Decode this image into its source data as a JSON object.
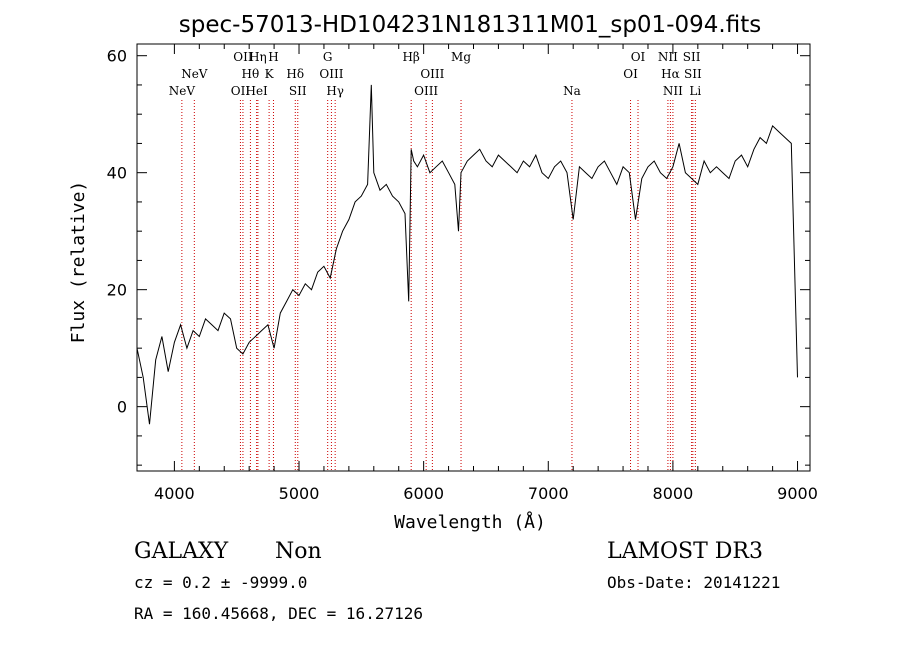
{
  "chart_data": {
    "type": "line",
    "title": "spec-57013-HD104231N181311M01_sp01-094.fits",
    "xlabel": "Wavelength (Å)",
    "ylabel": "Flux (relative)",
    "xlim": [
      3700,
      9100
    ],
    "ylim": [
      -11,
      62
    ],
    "xticks": [
      4000,
      5000,
      6000,
      7000,
      8000,
      9000
    ],
    "yticks": [
      0,
      20,
      40,
      60
    ],
    "grid": false,
    "line_color": "#000000",
    "marker_color": "#cc0000",
    "series": [
      {
        "x": [
          3700,
          3750,
          3800,
          3850,
          3900,
          3950,
          4000,
          4050,
          4100,
          4150,
          4200,
          4250,
          4300,
          4350,
          4400,
          4450,
          4500,
          4550,
          4600,
          4650,
          4700,
          4750,
          4800,
          4850,
          4900,
          4950,
          5000,
          5050,
          5100,
          5150,
          5200,
          5250,
          5300,
          5350,
          5400,
          5450,
          5500,
          5550,
          5580,
          5600,
          5650,
          5700,
          5750,
          5800,
          5850,
          5880,
          5900,
          5920,
          5950,
          6000,
          6050,
          6100,
          6150,
          6200,
          6250,
          6280,
          6300,
          6350,
          6400,
          6450,
          6500,
          6550,
          6600,
          6650,
          6700,
          6750,
          6800,
          6850,
          6900,
          6950,
          7000,
          7050,
          7100,
          7150,
          7200,
          7250,
          7300,
          7350,
          7400,
          7450,
          7500,
          7550,
          7600,
          7650,
          7700,
          7750,
          7800,
          7850,
          7900,
          7950,
          8000,
          8050,
          8100,
          8150,
          8200,
          8250,
          8300,
          8350,
          8400,
          8450,
          8500,
          8550,
          8600,
          8650,
          8700,
          8750,
          8800,
          8850,
          8900,
          8950,
          9000
        ],
        "y": [
          10,
          5,
          -3,
          8,
          12,
          6,
          11,
          14,
          10,
          13,
          12,
          15,
          14,
          13,
          16,
          15,
          10,
          9,
          11,
          12,
          13,
          14,
          10,
          16,
          18,
          20,
          19,
          21,
          20,
          23,
          24,
          22,
          27,
          30,
          32,
          35,
          36,
          38,
          55,
          40,
          37,
          38,
          36,
          35,
          33,
          18,
          44,
          42,
          41,
          43,
          40,
          41,
          42,
          40,
          38,
          30,
          40,
          42,
          43,
          44,
          42,
          41,
          43,
          42,
          41,
          40,
          42,
          41,
          43,
          40,
          39,
          41,
          42,
          40,
          32,
          41,
          40,
          39,
          41,
          42,
          40,
          38,
          41,
          40,
          32,
          39,
          41,
          42,
          40,
          39,
          41,
          45,
          40,
          39,
          38,
          42,
          40,
          41,
          40,
          39,
          42,
          43,
          41,
          44,
          46,
          45,
          48,
          47,
          46,
          45,
          5
        ]
      }
    ],
    "line_markers": [
      {
        "x": 4060,
        "label": "NeV",
        "row": 2
      },
      {
        "x": 4160,
        "label": "NeV",
        "row": 1
      },
      {
        "x": 4530,
        "label": "OII",
        "row": 2
      },
      {
        "x": 4550,
        "label": "OII",
        "row": 0
      },
      {
        "x": 4610,
        "label": "Hθ",
        "row": 1
      },
      {
        "x": 4660,
        "label": "HeI",
        "row": 2
      },
      {
        "x": 4670,
        "label": "Hη",
        "row": 0
      },
      {
        "x": 4760,
        "label": "K",
        "row": 1
      },
      {
        "x": 4795,
        "label": "H",
        "row": 0
      },
      {
        "x": 4970,
        "label": "Hδ",
        "row": 1
      },
      {
        "x": 4990,
        "label": "SII",
        "row": 2
      },
      {
        "x": 5230,
        "label": "G",
        "row": 0
      },
      {
        "x": 5260,
        "label": "OIII",
        "row": 1
      },
      {
        "x": 5290,
        "label": "Hγ",
        "row": 2
      },
      {
        "x": 5900,
        "label": "Hβ",
        "row": 0
      },
      {
        "x": 6020,
        "label": "OIII",
        "row": 2
      },
      {
        "x": 6070,
        "label": "OIII",
        "row": 1
      },
      {
        "x": 6300,
        "label": "Mg",
        "row": 0
      },
      {
        "x": 7190,
        "label": "Na",
        "row": 2
      },
      {
        "x": 7660,
        "label": "OI",
        "row": 1
      },
      {
        "x": 7720,
        "label": "OI",
        "row": 0
      },
      {
        "x": 7960,
        "label": "NII",
        "row": 0
      },
      {
        "x": 7980,
        "label": "Hα",
        "row": 1
      },
      {
        "x": 8000,
        "label": "NII",
        "row": 2
      },
      {
        "x": 8150,
        "label": "SII",
        "row": 0
      },
      {
        "x": 8160,
        "label": "SII",
        "row": 1
      },
      {
        "x": 8180,
        "label": "Li",
        "row": 2
      }
    ]
  },
  "footer": {
    "object_class": "GALAXY",
    "subclass": "Non",
    "survey": "LAMOST DR3",
    "redshift": "cz = 0.2 ± -9999.0",
    "obs_date": "Obs-Date: 20141221",
    "coords": "RA = 160.45668, DEC =  16.27126"
  }
}
